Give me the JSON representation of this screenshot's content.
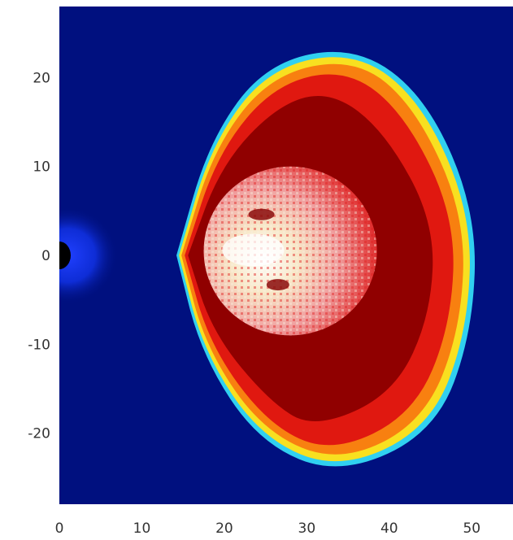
{
  "chart_data": {
    "type": "heatmap",
    "title": "",
    "xlabel": "",
    "ylabel": "",
    "xlim": [
      0,
      55
    ],
    "ylim": [
      -28,
      28
    ],
    "x_ticks": [
      {
        "value": 0,
        "label": "0"
      },
      {
        "value": 10,
        "label": "10"
      },
      {
        "value": 20,
        "label": "20"
      },
      {
        "value": 30,
        "label": "30"
      },
      {
        "value": 40,
        "label": "40"
      },
      {
        "value": 50,
        "label": "50"
      }
    ],
    "y_ticks": [
      {
        "value": 20,
        "label": "20"
      },
      {
        "value": 10,
        "label": "10"
      },
      {
        "value": 0,
        "label": "0"
      },
      {
        "value": -10,
        "label": "-10"
      },
      {
        "value": -20,
        "label": "-20"
      }
    ],
    "colormap": "jet",
    "colors": {
      "background": "#00107f",
      "planet": "#000000",
      "planet_halo": "#1030ff",
      "cyan": "#30d0f0",
      "yellow": "#f8e020",
      "orange": "#f88010",
      "red": "#e01810",
      "dark_red": "#900000",
      "core_light": "#f8e8c8",
      "core_white": "#ffffff",
      "core_pink": "#f0a0a0"
    },
    "features": [
      {
        "name": "planet",
        "center": [
          0,
          0
        ],
        "radius": 1.2
      },
      {
        "name": "planet-halo",
        "center": [
          1,
          0
        ],
        "radius": 5
      },
      {
        "name": "bow-shock-outer",
        "nose_x": 15,
        "max_x": 50,
        "y_extent": [
          -24,
          23
        ]
      },
      {
        "name": "core-region",
        "center": [
          28,
          1
        ],
        "x_extent": [
          17,
          38
        ],
        "y_extent": [
          -9,
          10
        ]
      }
    ]
  }
}
